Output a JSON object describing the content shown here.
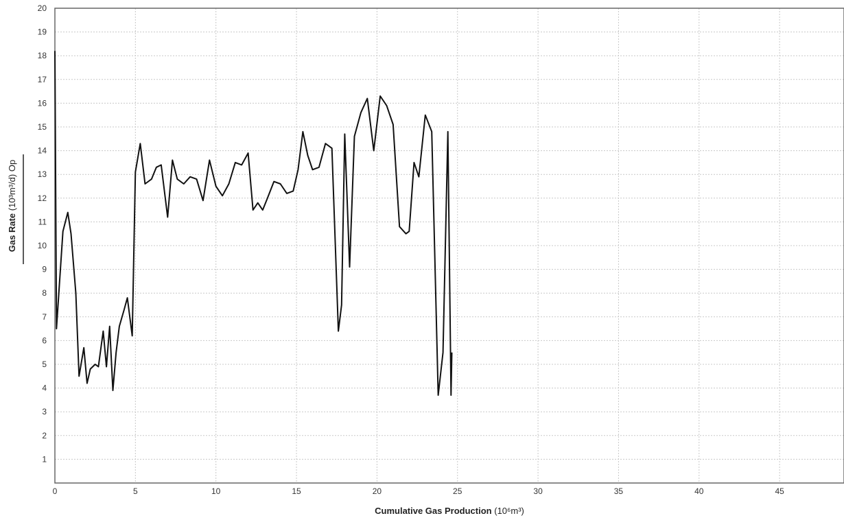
{
  "chart_data": {
    "type": "line",
    "title": "",
    "xlabel": "Cumulative Gas Production",
    "xlabel_unit": "(10⁶m³)",
    "ylabel": "Gas Rate",
    "ylabel_unit": "(10³m³/d) Op",
    "xlim": [
      0,
      49
    ],
    "ylim": [
      0,
      20
    ],
    "x_ticks": [
      0,
      5,
      10,
      15,
      20,
      25,
      30,
      35,
      40,
      45
    ],
    "y_ticks": [
      1,
      2,
      3,
      4,
      5,
      6,
      7,
      8,
      9,
      10,
      11,
      12,
      13,
      14,
      15,
      16,
      17,
      18,
      19,
      20
    ],
    "grid": true,
    "legend": "none",
    "line_color": "#111111",
    "series": [
      {
        "x": [
          0,
          0.1,
          0.5,
          0.8,
          1.0,
          1.3,
          1.5,
          1.8,
          2.0,
          2.2,
          2.5,
          2.7,
          3.0,
          3.2,
          3.4,
          3.6,
          3.8,
          4.0,
          4.3,
          4.5,
          4.8,
          5.0,
          5.3,
          5.6,
          6.0,
          6.3,
          6.6,
          7.0,
          7.3,
          7.6,
          8.0,
          8.4,
          8.8,
          9.2,
          9.6,
          10.0,
          10.4,
          10.8,
          11.2,
          11.6,
          12.0,
          12.3,
          12.6,
          12.9,
          13.2,
          13.6,
          14.0,
          14.4,
          14.8,
          15.1,
          15.4,
          15.7,
          16.0,
          16.4,
          16.8,
          17.2,
          17.6,
          17.8,
          18.0,
          18.3,
          18.6,
          19.0,
          19.4,
          19.8,
          20.2,
          20.6,
          21.0,
          21.4,
          21.8,
          22.0,
          22.3,
          22.6,
          23.0,
          23.4,
          23.8,
          24.1,
          24.4,
          24.6,
          24.65
        ],
        "values": [
          18.2,
          6.5,
          10.6,
          11.4,
          10.5,
          8.0,
          4.5,
          5.7,
          4.2,
          4.8,
          5.0,
          4.9,
          6.4,
          4.9,
          6.6,
          3.9,
          5.5,
          6.6,
          7.3,
          7.8,
          6.2,
          13.1,
          14.3,
          12.6,
          12.8,
          13.3,
          13.4,
          11.2,
          13.6,
          12.8,
          12.6,
          12.9,
          12.8,
          11.9,
          13.6,
          12.5,
          12.1,
          12.6,
          13.5,
          13.4,
          13.9,
          11.5,
          11.8,
          11.5,
          12.0,
          12.7,
          12.6,
          12.2,
          12.3,
          13.2,
          14.8,
          13.8,
          13.2,
          13.3,
          14.3,
          14.1,
          6.4,
          7.5,
          14.7,
          9.1,
          14.6,
          15.6,
          16.2,
          14.0,
          16.3,
          15.9,
          15.1,
          10.8,
          10.5,
          10.6,
          13.5,
          12.9,
          15.5,
          14.8,
          3.7,
          5.5,
          14.8,
          3.7,
          5.5
        ]
      }
    ]
  }
}
